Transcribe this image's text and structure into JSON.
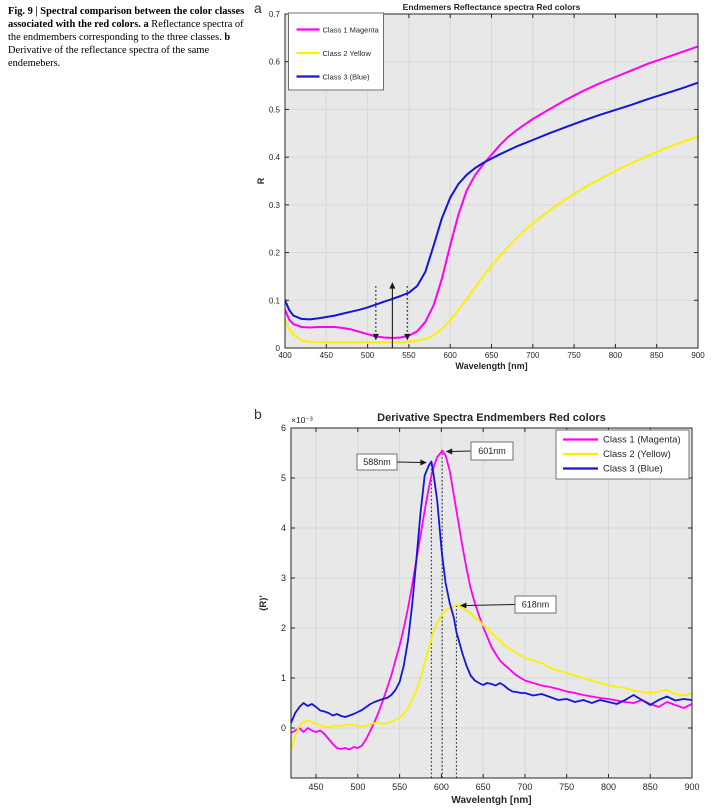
{
  "figure": {
    "caption": {
      "bold_intro": "Fig. 9 | Spectral comparison between the color classes associated with the red colors.",
      "label_a": "a",
      "text_a": "Reflectance spectra of the endmembers corresponding to the three classes.",
      "label_b": "b",
      "text_b": "Derivative of the reflectance spectra of the same endemebers."
    },
    "panel_a": "a",
    "panel_b": "b"
  },
  "colors": {
    "magenta": "#FF00F2",
    "yellow": "#FBF000",
    "blue": "#1515D8",
    "plot_bg": "#E8E8E8",
    "grid": "#D8D8D8",
    "axis": "#262626",
    "annotation": "#1a1a1a",
    "legend_border": "#707070"
  },
  "chart_data": [
    {
      "id": "reflectance",
      "type": "line",
      "title": "Endmemers Reflectance spectra  Red colors",
      "xlabel": "Wavelength [nm]",
      "ylabel": "R",
      "xlim": [
        400,
        900
      ],
      "ylim": [
        0,
        0.7
      ],
      "xticks": [
        400,
        450,
        500,
        550,
        600,
        650,
        700,
        750,
        800,
        850,
        900
      ],
      "yticks": [
        0,
        0.1,
        0.2,
        0.3,
        0.4,
        0.5,
        0.6,
        0.7
      ],
      "grid": true,
      "legend_position": "top-left",
      "x": [
        400,
        405,
        410,
        420,
        430,
        440,
        450,
        460,
        470,
        480,
        490,
        500,
        510,
        520,
        530,
        540,
        550,
        560,
        570,
        580,
        590,
        600,
        610,
        620,
        630,
        640,
        650,
        660,
        670,
        680,
        690,
        700,
        720,
        740,
        760,
        780,
        800,
        820,
        840,
        860,
        880,
        900
      ],
      "series": [
        {
          "name": "Class 1 Magenta",
          "color_key": "magenta",
          "values": [
            0.08,
            0.06,
            0.05,
            0.044,
            0.043,
            0.044,
            0.044,
            0.044,
            0.042,
            0.039,
            0.034,
            0.029,
            0.024,
            0.022,
            0.021,
            0.022,
            0.026,
            0.035,
            0.055,
            0.09,
            0.145,
            0.215,
            0.28,
            0.33,
            0.362,
            0.385,
            0.405,
            0.425,
            0.442,
            0.456,
            0.468,
            0.48,
            0.5,
            0.52,
            0.538,
            0.554,
            0.568,
            0.582,
            0.596,
            0.608,
            0.62,
            0.632
          ]
        },
        {
          "name": "Class 2 Yellow",
          "color_key": "yellow",
          "values": [
            0.06,
            0.04,
            0.028,
            0.016,
            0.013,
            0.012,
            0.012,
            0.012,
            0.012,
            0.012,
            0.012,
            0.012,
            0.012,
            0.012,
            0.012,
            0.012,
            0.013,
            0.015,
            0.019,
            0.027,
            0.04,
            0.058,
            0.08,
            0.103,
            0.127,
            0.15,
            0.172,
            0.193,
            0.212,
            0.23,
            0.246,
            0.261,
            0.288,
            0.312,
            0.334,
            0.353,
            0.371,
            0.388,
            0.403,
            0.418,
            0.431,
            0.443
          ]
        },
        {
          "name": "Class 3 (Blue)",
          "color_key": "blue",
          "values": [
            0.1,
            0.08,
            0.068,
            0.061,
            0.06,
            0.062,
            0.065,
            0.068,
            0.072,
            0.076,
            0.08,
            0.085,
            0.091,
            0.097,
            0.103,
            0.109,
            0.116,
            0.13,
            0.16,
            0.215,
            0.272,
            0.315,
            0.344,
            0.363,
            0.377,
            0.388,
            0.397,
            0.406,
            0.414,
            0.422,
            0.429,
            0.436,
            0.45,
            0.463,
            0.476,
            0.488,
            0.499,
            0.51,
            0.522,
            0.533,
            0.544,
            0.556
          ]
        }
      ],
      "annotations": {
        "dashed_down_arrows": [
          {
            "x_nm": 510,
            "from_R": 0.13,
            "to_R": 0.016
          },
          {
            "x_nm": 548,
            "from_R": 0.13,
            "to_R": 0.016
          }
        ],
        "solid_up_arrow": {
          "x_nm": 530,
          "from_R": 0.0,
          "to_R": 0.138
        }
      }
    },
    {
      "id": "derivative",
      "type": "line",
      "title": "Derivative Spectra Endmembers Red colors",
      "xlabel": "Wavelentgh [nm]",
      "ylabel": "(R)'",
      "y_multiplier": "×10⁻³",
      "units": "values in 1e-3",
      "xlim": [
        420,
        900
      ],
      "ylim": [
        -1,
        6
      ],
      "xticks": [
        450,
        500,
        550,
        600,
        650,
        700,
        750,
        800,
        850,
        900
      ],
      "yticks": [
        0,
        1,
        2,
        3,
        4,
        5,
        6
      ],
      "grid": true,
      "legend_position": "top-right",
      "x": [
        420,
        425,
        430,
        435,
        440,
        445,
        450,
        455,
        460,
        465,
        470,
        475,
        480,
        485,
        490,
        495,
        500,
        505,
        510,
        515,
        520,
        525,
        530,
        535,
        540,
        545,
        550,
        555,
        560,
        565,
        570,
        575,
        580,
        585,
        588,
        590,
        595,
        600,
        601,
        605,
        610,
        615,
        618,
        620,
        625,
        630,
        635,
        640,
        645,
        650,
        655,
        660,
        665,
        670,
        675,
        680,
        685,
        690,
        695,
        700,
        710,
        720,
        730,
        740,
        750,
        760,
        770,
        780,
        790,
        800,
        810,
        820,
        830,
        840,
        850,
        860,
        870,
        880,
        890,
        900
      ],
      "series": [
        {
          "name": "Class 1 (Magenta)",
          "color_key": "magenta",
          "values": [
            -0.1,
            -0.05,
            0.0,
            -0.08,
            0.0,
            -0.05,
            -0.08,
            -0.05,
            -0.12,
            -0.22,
            -0.32,
            -0.4,
            -0.42,
            -0.4,
            -0.43,
            -0.38,
            -0.4,
            -0.35,
            -0.22,
            -0.05,
            0.12,
            0.32,
            0.55,
            0.8,
            1.05,
            1.35,
            1.65,
            2.0,
            2.4,
            2.85,
            3.35,
            3.85,
            4.35,
            4.8,
            5.05,
            5.18,
            5.42,
            5.52,
            5.55,
            5.45,
            5.15,
            4.65,
            4.35,
            4.15,
            3.65,
            3.2,
            2.8,
            2.5,
            2.25,
            2.02,
            1.82,
            1.62,
            1.48,
            1.35,
            1.27,
            1.2,
            1.12,
            1.05,
            1.0,
            0.95,
            0.9,
            0.85,
            0.82,
            0.78,
            0.73,
            0.7,
            0.66,
            0.63,
            0.6,
            0.58,
            0.55,
            0.52,
            0.5,
            0.56,
            0.48,
            0.42,
            0.52,
            0.46,
            0.4,
            0.48
          ]
        },
        {
          "name": "Class 2 (Yellow)",
          "color_key": "yellow",
          "values": [
            -0.45,
            -0.15,
            0.05,
            0.12,
            0.15,
            0.12,
            0.08,
            0.05,
            0.03,
            0.02,
            0.03,
            0.05,
            0.04,
            0.06,
            0.08,
            0.06,
            0.04,
            0.03,
            0.05,
            0.08,
            0.1,
            0.1,
            0.08,
            0.1,
            0.12,
            0.16,
            0.2,
            0.28,
            0.4,
            0.55,
            0.75,
            1.0,
            1.3,
            1.6,
            1.78,
            1.9,
            2.1,
            2.25,
            2.27,
            2.35,
            2.4,
            2.44,
            2.47,
            2.45,
            2.4,
            2.35,
            2.3,
            2.2,
            2.15,
            2.05,
            2.0,
            1.9,
            1.82,
            1.75,
            1.66,
            1.6,
            1.55,
            1.5,
            1.45,
            1.4,
            1.35,
            1.3,
            1.2,
            1.15,
            1.1,
            1.05,
            1.0,
            0.95,
            0.9,
            0.85,
            0.82,
            0.8,
            0.75,
            0.72,
            0.7,
            0.73,
            0.76,
            0.68,
            0.65,
            0.7
          ]
        },
        {
          "name": "Class 3 (Blue)",
          "color_key": "blue",
          "values": [
            0.1,
            0.3,
            0.42,
            0.5,
            0.44,
            0.48,
            0.42,
            0.35,
            0.33,
            0.3,
            0.25,
            0.28,
            0.24,
            0.22,
            0.25,
            0.28,
            0.32,
            0.36,
            0.42,
            0.48,
            0.52,
            0.55,
            0.58,
            0.6,
            0.66,
            0.76,
            0.92,
            1.25,
            1.75,
            2.45,
            3.35,
            4.3,
            5.05,
            5.25,
            5.33,
            5.15,
            4.55,
            3.6,
            3.45,
            2.9,
            2.5,
            2.2,
            1.92,
            1.8,
            1.5,
            1.25,
            1.05,
            0.95,
            0.9,
            0.86,
            0.9,
            0.88,
            0.85,
            0.9,
            0.85,
            0.78,
            0.73,
            0.72,
            0.7,
            0.7,
            0.65,
            0.68,
            0.62,
            0.56,
            0.58,
            0.52,
            0.56,
            0.5,
            0.56,
            0.52,
            0.48,
            0.56,
            0.66,
            0.56,
            0.46,
            0.56,
            0.63,
            0.55,
            0.58,
            0.56
          ]
        }
      ],
      "annotations": {
        "peak_labels": [
          {
            "label": "588nm",
            "peak_nm": 588,
            "peak_value": 5.33
          },
          {
            "label": "601nm",
            "peak_nm": 601,
            "peak_value": 5.55
          },
          {
            "label": "618nm",
            "peak_nm": 618,
            "peak_value": 2.47
          }
        ]
      }
    }
  ]
}
